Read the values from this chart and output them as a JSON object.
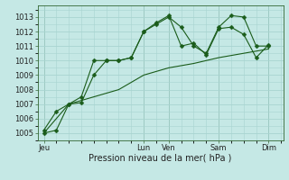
{
  "background_color": "#c5e8e5",
  "grid_color": "#a8d4d0",
  "line_color": "#1a5c1a",
  "xlabel": "Pression niveau de la mer( hPa )",
  "ylim": [
    1004.5,
    1013.8
  ],
  "yticks": [
    1005,
    1006,
    1007,
    1008,
    1009,
    1010,
    1011,
    1012,
    1013
  ],
  "day_labels": [
    "Jeu",
    "Lun",
    "Ven",
    "Sam",
    "Dim"
  ],
  "day_positions": [
    0,
    48,
    60,
    84,
    108
  ],
  "xlim": [
    -3,
    115
  ],
  "line1_x": [
    0,
    6,
    12,
    18,
    24,
    30,
    36,
    42,
    48,
    54,
    60,
    66,
    72,
    78,
    84,
    90,
    96,
    102,
    108
  ],
  "line1_y": [
    1005.0,
    1005.2,
    1007.0,
    1007.1,
    1009.0,
    1010.0,
    1010.0,
    1010.2,
    1012.0,
    1012.5,
    1013.0,
    1012.3,
    1011.0,
    1010.5,
    1012.3,
    1013.1,
    1013.0,
    1011.0,
    1011.0
  ],
  "line2_x": [
    0,
    6,
    12,
    18,
    24,
    30,
    36,
    42,
    48,
    54,
    60,
    66,
    72,
    78,
    84,
    90,
    96,
    102,
    108
  ],
  "line2_y": [
    1005.2,
    1006.5,
    1007.0,
    1007.5,
    1010.0,
    1010.0,
    1010.0,
    1010.2,
    1012.0,
    1012.6,
    1013.1,
    1011.0,
    1011.2,
    1010.4,
    1012.2,
    1012.3,
    1011.8,
    1010.2,
    1011.1
  ],
  "line3_x": [
    0,
    12,
    24,
    36,
    48,
    60,
    72,
    84,
    96,
    108
  ],
  "line3_y": [
    1005.0,
    1007.0,
    1007.5,
    1008.0,
    1009.0,
    1009.5,
    1009.8,
    1010.2,
    1010.5,
    1010.8
  ],
  "xlabel_fontsize": 7,
  "tick_fontsize": 6,
  "marker_size": 2.5
}
